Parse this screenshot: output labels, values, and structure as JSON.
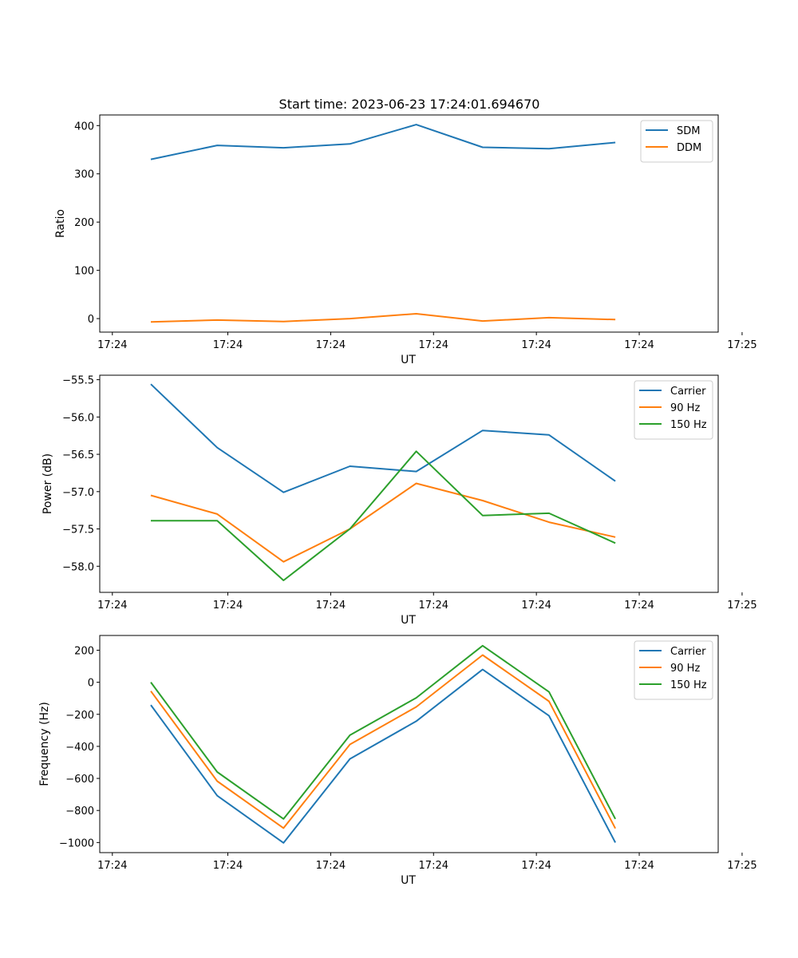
{
  "figure_title": "Start time: 2023-06-23 17:24:01.694670",
  "x_tick_labels": [
    "17:24",
    "17:24",
    "17:24",
    "17:24",
    "17:24",
    "17:24",
    "17:25"
  ],
  "chart_data": [
    {
      "type": "line",
      "title": "Start time: 2023-06-23 17:24:01.694670",
      "xlabel": "UT",
      "ylabel": "Ratio",
      "x": [
        1,
        2,
        3,
        4,
        5,
        6,
        7,
        8
      ],
      "xlim": [
        0.23,
        9.55
      ],
      "ylim": [
        -28,
        422
      ],
      "yticks": [
        0,
        100,
        200,
        300,
        400
      ],
      "ytick_labels": [
        "0",
        "100",
        "200",
        "300",
        "400"
      ],
      "legend_position": "upper right",
      "series": [
        {
          "name": "SDM",
          "color": "#1f77b4",
          "values": [
            330,
            359,
            354,
            362,
            402,
            355,
            352,
            365
          ]
        },
        {
          "name": "DDM",
          "color": "#ff7f0e",
          "values": [
            -7,
            -3,
            -6,
            0,
            10,
            -5,
            2,
            -2
          ]
        }
      ]
    },
    {
      "type": "line",
      "title": "",
      "xlabel": "UT",
      "ylabel": "Power (dB)",
      "x": [
        1,
        2,
        3,
        4,
        5,
        6,
        7,
        8
      ],
      "xlim": [
        0.23,
        9.55
      ],
      "ylim": [
        -58.35,
        -55.44
      ],
      "yticks": [
        -58.0,
        -57.5,
        -57.0,
        -56.5,
        -56.0,
        -55.5
      ],
      "ytick_labels": [
        "−58.0",
        "−57.5",
        "−57.0",
        "−56.5",
        "−56.0",
        "−55.5"
      ],
      "legend_position": "upper right",
      "series": [
        {
          "name": "Carrier",
          "color": "#1f77b4",
          "values": [
            -55.56,
            -56.41,
            -57.01,
            -56.66,
            -56.73,
            -56.18,
            -56.24,
            -56.86
          ]
        },
        {
          "name": "90 Hz",
          "color": "#ff7f0e",
          "values": [
            -57.05,
            -57.3,
            -57.94,
            -57.5,
            -56.89,
            -57.12,
            -57.41,
            -57.61
          ]
        },
        {
          "name": "150 Hz",
          "color": "#2ca02c",
          "values": [
            -57.39,
            -57.39,
            -58.19,
            -57.5,
            -56.46,
            -57.32,
            -57.29,
            -57.69
          ]
        }
      ]
    },
    {
      "type": "line",
      "title": "",
      "xlabel": "UT",
      "ylabel": "Frequency (Hz)",
      "x": [
        1,
        2,
        3,
        4,
        5,
        6,
        7,
        8
      ],
      "xlim": [
        0.23,
        9.55
      ],
      "ylim": [
        -1063,
        292
      ],
      "yticks": [
        -1000,
        -800,
        -600,
        -400,
        -200,
        0,
        200
      ],
      "ytick_labels": [
        "−1000",
        "−800",
        "−600",
        "−400",
        "−200",
        "0",
        "200"
      ],
      "legend_position": "upper right",
      "series": [
        {
          "name": "Carrier",
          "color": "#1f77b4",
          "values": [
            -142,
            -708,
            -1002,
            -478,
            -243,
            80,
            -209,
            -1000
          ]
        },
        {
          "name": "90 Hz",
          "color": "#ff7f0e",
          "values": [
            -55,
            -617,
            -910,
            -388,
            -154,
            170,
            -119,
            -912
          ]
        },
        {
          "name": "150 Hz",
          "color": "#2ca02c",
          "values": [
            0,
            -560,
            -853,
            -330,
            -97,
            228,
            -60,
            -853
          ]
        }
      ]
    }
  ]
}
